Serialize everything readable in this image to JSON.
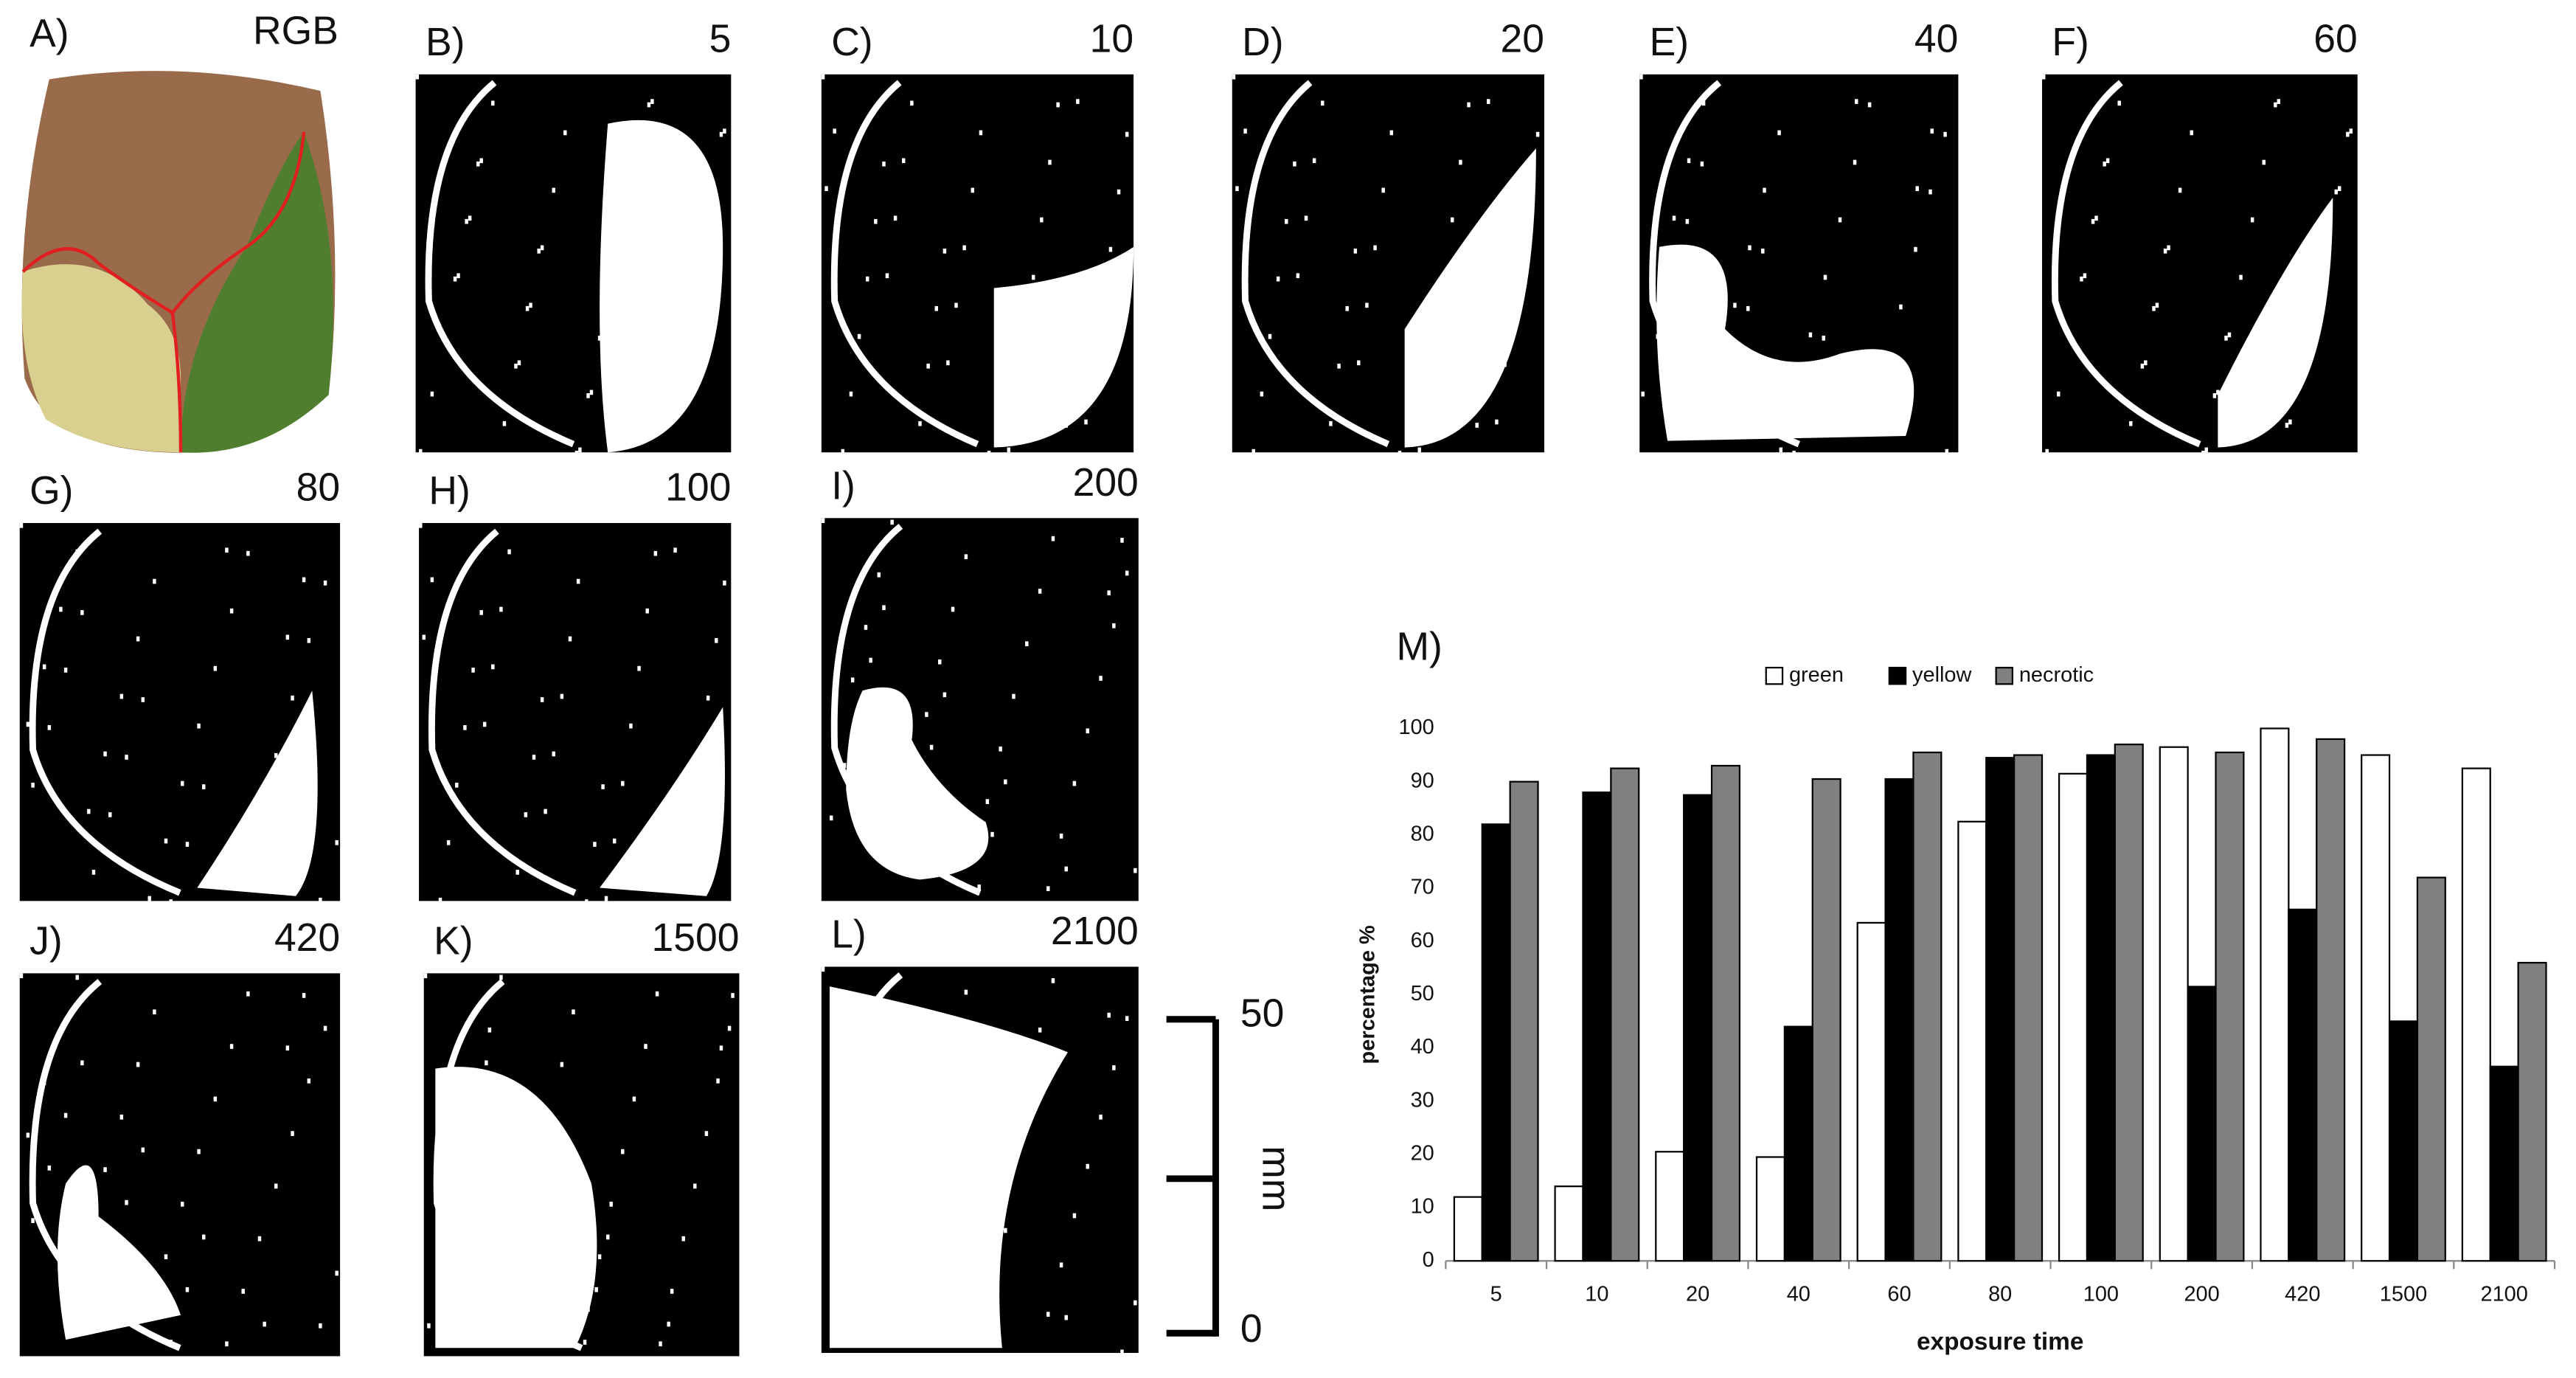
{
  "panels": [
    {
      "label": "A)",
      "caption": "RGB"
    },
    {
      "label": "B)",
      "caption": "5"
    },
    {
      "label": "C)",
      "caption": "10"
    },
    {
      "label": "D)",
      "caption": "20"
    },
    {
      "label": "E)",
      "caption": "40"
    },
    {
      "label": "F)",
      "caption": "60"
    },
    {
      "label": "G)",
      "caption": "80"
    },
    {
      "label": "H)",
      "caption": "100"
    },
    {
      "label": "I)",
      "caption": "200"
    },
    {
      "label": "J)",
      "caption": "420"
    },
    {
      "label": "K)",
      "caption": "1500"
    },
    {
      "label": "L)",
      "caption": "2100"
    }
  ],
  "scale_bar": {
    "top": "50",
    "bottom": "0",
    "unit": "mm"
  },
  "chart_data": {
    "type": "bar",
    "panel_label": "M)",
    "x_label": "exposure time",
    "y_label": "percentage %",
    "categories": [
      "5",
      "10",
      "20",
      "40",
      "60",
      "80",
      "100",
      "200",
      "420",
      "1500",
      "2100"
    ],
    "series": [
      {
        "name": "green",
        "color": "#ffffff",
        "values": [
          12,
          14,
          20.5,
          19.5,
          63.5,
          82.5,
          91.5,
          96.5,
          100,
          95,
          92.5
        ]
      },
      {
        "name": "yellow",
        "color": "#000000",
        "values": [
          82,
          88,
          87.5,
          44,
          90.5,
          94.5,
          95,
          51.5,
          66,
          45,
          36.5
        ]
      },
      {
        "name": "necrotic",
        "color": "#808080",
        "values": [
          90,
          92.5,
          93,
          90.5,
          95.5,
          95,
          97,
          95.5,
          98,
          72,
          56
        ]
      }
    ],
    "ylim": [
      0,
      100
    ],
    "yticks": [
      0,
      10,
      20,
      30,
      40,
      50,
      60,
      70,
      80,
      90,
      100
    ],
    "grid": false,
    "legend": "top"
  }
}
